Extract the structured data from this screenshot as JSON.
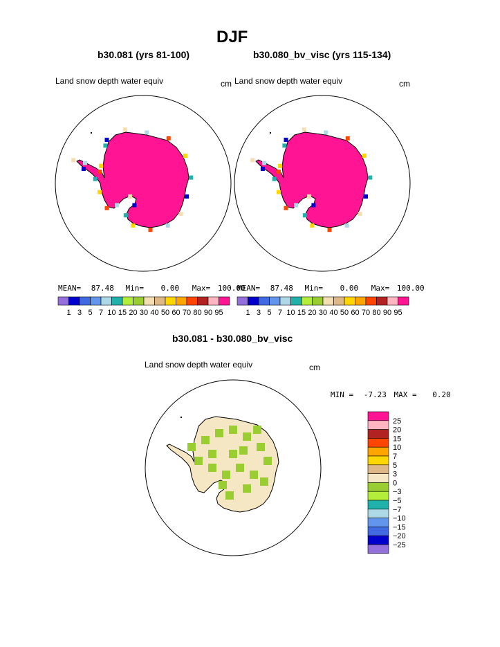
{
  "page": {
    "title": "DJF"
  },
  "panels": [
    {
      "id": "left",
      "subtitle": "b30.081 (yrs 81-100)",
      "field": "Land snow depth water equiv",
      "units": "cm",
      "stats": {
        "mean_label": "MEAN=",
        "mean": "87.48",
        "min_label": "Min=",
        "min": "0.00",
        "max_label": "Max=",
        "max": "100.00"
      }
    },
    {
      "id": "right",
      "subtitle": "b30.080_bv_visc (yrs 115-134)",
      "field": "Land snow depth water equiv",
      "units": "cm",
      "stats": {
        "mean_label": "MEAN=",
        "mean": "87.48",
        "min_label": "Min=",
        "min": "0.00",
        "max_label": "Max=",
        "max": "100.00"
      }
    },
    {
      "id": "diff",
      "subtitle": "b30.081 - b30.080_bv_visc",
      "field": "Land snow depth water equiv",
      "units": "cm",
      "stats": {
        "min_label": "MIN =",
        "min": "-7.23",
        "max_label": "MAX =",
        "max": "0.20"
      }
    }
  ],
  "chart_data": [
    {
      "type": "heatmap",
      "projection": "south-polar-stereographic",
      "title": "b30.081 (yrs 81-100)",
      "field": "Land snow depth water equiv",
      "units": "cm",
      "mean": 87.48,
      "min": 0.0,
      "max": 100.0,
      "dominant_interior_class": "95+",
      "colorbar": {
        "orientation": "horizontal",
        "levels": [
          "1",
          "3",
          "5",
          "7",
          "10",
          "15",
          "20",
          "30",
          "40",
          "50",
          "60",
          "70",
          "80",
          "90",
          "95"
        ],
        "colors": [
          "#9370db",
          "#0000cd",
          "#4169e1",
          "#6495ed",
          "#add8e6",
          "#20b2aa",
          "#b3ee3a",
          "#9acd32",
          "#f5deb3",
          "#deb887",
          "#ffd700",
          "#ffa500",
          "#ff4500",
          "#b22222",
          "#ffb6c1",
          "#ff1493"
        ]
      }
    },
    {
      "type": "heatmap",
      "projection": "south-polar-stereographic",
      "title": "b30.080_bv_visc (yrs 115-134)",
      "field": "Land snow depth water equiv",
      "units": "cm",
      "mean": 87.48,
      "min": 0.0,
      "max": 100.0,
      "dominant_interior_class": "95+",
      "colorbar": {
        "orientation": "horizontal",
        "levels": [
          "1",
          "3",
          "5",
          "7",
          "10",
          "15",
          "20",
          "30",
          "40",
          "50",
          "60",
          "70",
          "80",
          "90",
          "95"
        ],
        "colors": [
          "#9370db",
          "#0000cd",
          "#4169e1",
          "#6495ed",
          "#add8e6",
          "#20b2aa",
          "#b3ee3a",
          "#9acd32",
          "#f5deb3",
          "#deb887",
          "#ffd700",
          "#ffa500",
          "#ff4500",
          "#b22222",
          "#ffb6c1",
          "#ff1493"
        ]
      }
    },
    {
      "type": "heatmap",
      "projection": "south-polar-stereographic",
      "title": "b30.081 - b30.080_bv_visc",
      "field": "Land snow depth water equiv",
      "units": "cm",
      "min": -7.23,
      "max": 0.2,
      "dominant_interior_class": "0 to 3",
      "colorbar": {
        "orientation": "vertical",
        "levels": [
          "25",
          "20",
          "15",
          "10",
          "7",
          "5",
          "3",
          "0",
          "−3",
          "−5",
          "−7",
          "−10",
          "−15",
          "−20",
          "−25"
        ],
        "colors": [
          "#ff1493",
          "#ffb6c1",
          "#b22222",
          "#ff4500",
          "#ffa500",
          "#ffd700",
          "#deb887",
          "#f5e6c4",
          "#9acd32",
          "#b3ee3a",
          "#20b2aa",
          "#add8e6",
          "#6495ed",
          "#4169e1",
          "#0000cd",
          "#9370db"
        ]
      }
    }
  ]
}
